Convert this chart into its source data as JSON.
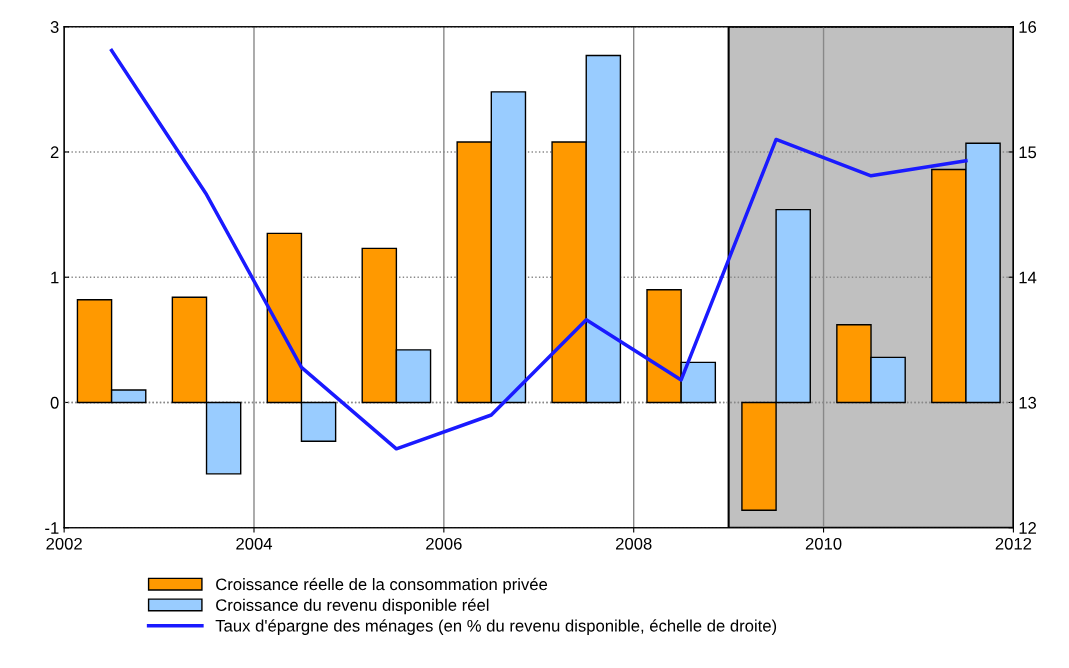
{
  "chart_data": {
    "type": "bar",
    "x": [
      2002.5,
      2003.5,
      2004.5,
      2005.5,
      2006.5,
      2007.5,
      2008.5,
      2009.5,
      2010.5,
      2011.5
    ],
    "series": [
      {
        "name": "Croissance réelle de la consommation privée",
        "color": "#ff9900",
        "values": [
          0.82,
          0.84,
          1.35,
          1.23,
          2.08,
          2.08,
          0.9,
          -0.86,
          0.62,
          1.86
        ]
      },
      {
        "name": "Croissance du revenu disponible réel",
        "color": "#99ccff",
        "values": [
          0.1,
          -0.57,
          -0.31,
          0.42,
          2.48,
          2.77,
          0.32,
          1.54,
          0.36,
          2.07
        ]
      },
      {
        "name": "Taux d'épargne des ménages (en % du revenu disponible, échelle de droite)",
        "type": "line",
        "axis": "y2",
        "color": "#1a1aff",
        "values": [
          15.81,
          14.66,
          13.28,
          12.63,
          12.9,
          13.66,
          13.18,
          15.1,
          14.81,
          14.93
        ]
      }
    ],
    "xlim": [
      2002,
      2012
    ],
    "xticks": [
      2002,
      2004,
      2006,
      2008,
      2010,
      2012
    ],
    "ylim": [
      -1,
      3
    ],
    "yticks": [
      -1,
      0,
      1,
      2,
      3
    ],
    "y2lim": [
      12,
      16
    ],
    "y2ticks": [
      12,
      13,
      14,
      15,
      16
    ],
    "bands": [
      {
        "axis": "x",
        "from": 2009,
        "to": 2012,
        "color": "#c0c0c0"
      }
    ],
    "grid": true,
    "legend": "bottom",
    "marker": "none",
    "line_style": "solid"
  }
}
